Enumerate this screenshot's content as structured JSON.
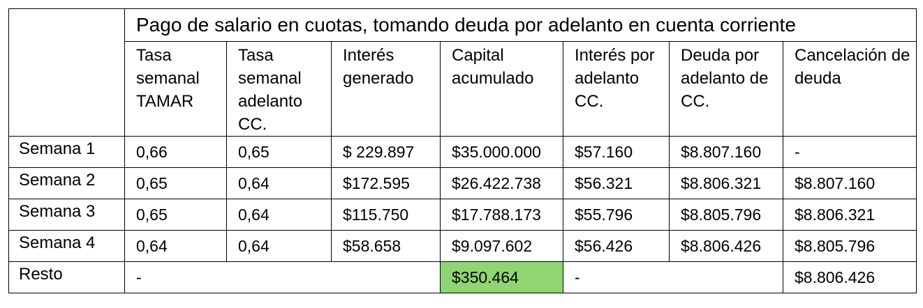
{
  "title": "Pago de salario en cuotas, tomando deuda por adelanto en cuenta corriente",
  "columns": [
    "Tasa semanal TAMAR",
    "Tasa semanal adelanto CC.",
    "Interés generado",
    "Capital acumulado",
    "Interés por adelanto CC.",
    "Deuda por adelanto de CC.",
    "Cancelación de deuda"
  ],
  "rows": [
    {
      "label": "Semana 1",
      "cells": [
        "0,66",
        "0,65",
        "$ 229.897",
        "$35.000.000",
        "$57.160",
        "$8.807.160",
        "-"
      ]
    },
    {
      "label": "Semana 2",
      "cells": [
        "0,65",
        "0,64",
        "$172.595",
        "$26.422.738",
        "$56.321",
        "$8.806.321",
        "$8.807.160"
      ]
    },
    {
      "label": "Semana 3",
      "cells": [
        "0,65",
        "0,64",
        "$115.750",
        "$17.788.173",
        "$55.796",
        "$8.805.796",
        "$8.806.321"
      ]
    },
    {
      "label": "Semana 4",
      "cells": [
        "0,64",
        "0,64",
        "$58.658",
        "$9.097.602",
        "$56.426",
        "$8.806.426",
        "$8.805.796"
      ]
    }
  ],
  "resto": {
    "label": "Resto",
    "rates_to_interest": "-",
    "capital": "$350.464",
    "interest_to_debt": "-",
    "cancelacion": "$8.806.426"
  },
  "highlight_color": "#8fd672"
}
